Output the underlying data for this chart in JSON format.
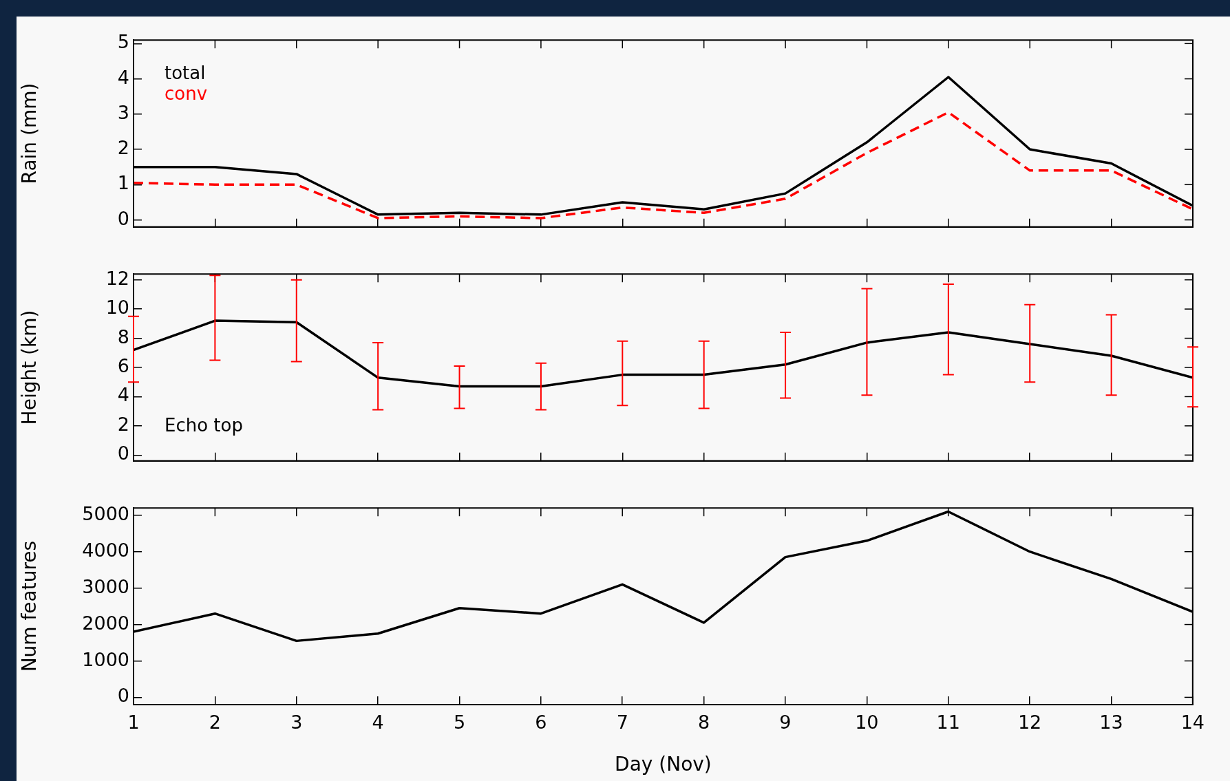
{
  "chart_data": [
    {
      "type": "line",
      "ylabel": "Rain (mm)",
      "x": [
        1,
        2,
        3,
        4,
        5,
        6,
        7,
        8,
        9,
        10,
        11,
        12,
        13,
        14
      ],
      "xlim": [
        1,
        14
      ],
      "xticks": [
        1,
        2,
        3,
        4,
        5,
        6,
        7,
        8,
        9,
        10,
        11,
        12,
        13,
        14
      ],
      "ylim": [
        -0.2,
        5.1
      ],
      "yticks": [
        0,
        1,
        2,
        3,
        4,
        5
      ],
      "tick_labels": "y",
      "grid": false,
      "legend": "top left",
      "marker": "none",
      "series": [
        {
          "name": "total",
          "color": "#000000",
          "line_style": "solid",
          "values": [
            1.5,
            1.5,
            1.3,
            0.15,
            0.2,
            0.15,
            0.5,
            0.3,
            0.75,
            2.2,
            4.05,
            2.0,
            1.6,
            0.4
          ]
        },
        {
          "name": "conv",
          "color": "#ff0000",
          "line_style": "dashed",
          "values": [
            1.05,
            1.0,
            1.0,
            0.05,
            0.1,
            0.05,
            0.35,
            0.2,
            0.6,
            1.9,
            3.05,
            1.4,
            1.4,
            0.3
          ]
        }
      ]
    },
    {
      "type": "line",
      "ylabel": "Height (km)",
      "annotations": [
        "Echo top"
      ],
      "x": [
        1,
        2,
        3,
        4,
        5,
        6,
        7,
        8,
        9,
        10,
        11,
        12,
        13,
        14
      ],
      "xlim": [
        1,
        14
      ],
      "xticks": [
        1,
        2,
        3,
        4,
        5,
        6,
        7,
        8,
        9,
        10,
        11,
        12,
        13,
        14
      ],
      "ylim": [
        -0.4,
        12.4
      ],
      "yticks": [
        0,
        2,
        4,
        6,
        8,
        10,
        12
      ],
      "tick_labels": "y",
      "grid": false,
      "marker": "none",
      "series": [
        {
          "color": "#000000",
          "line_style": "solid",
          "values": [
            7.2,
            9.2,
            9.1,
            5.3,
            4.7,
            4.7,
            5.5,
            5.5,
            6.2,
            7.7,
            8.4,
            7.6,
            6.8,
            5.3
          ],
          "errors": [
            [
              5.0,
              9.5
            ],
            [
              6.5,
              12.3
            ],
            [
              6.4,
              12.0
            ],
            [
              3.1,
              7.7
            ],
            [
              3.2,
              6.1
            ],
            [
              3.1,
              6.3
            ],
            [
              3.4,
              7.8
            ],
            [
              3.2,
              7.8
            ],
            [
              3.9,
              8.4
            ],
            [
              4.1,
              11.4
            ],
            [
              5.5,
              11.7
            ],
            [
              5.0,
              10.3
            ],
            [
              4.1,
              9.6
            ],
            [
              3.3,
              7.4
            ]
          ]
        }
      ]
    },
    {
      "type": "line",
      "ylabel": "Num features",
      "xlabel": "Day (Nov)",
      "x": [
        1,
        2,
        3,
        4,
        5,
        6,
        7,
        8,
        9,
        10,
        11,
        12,
        13,
        14
      ],
      "xlim": [
        1,
        14
      ],
      "xticks": [
        1,
        2,
        3,
        4,
        5,
        6,
        7,
        8,
        9,
        10,
        11,
        12,
        13,
        14
      ],
      "ylim": [
        -200,
        5200
      ],
      "yticks": [
        0,
        1000,
        2000,
        3000,
        4000,
        5000
      ],
      "grid": false,
      "marker": "none",
      "series": [
        {
          "color": "#000000",
          "line_style": "solid",
          "values": [
            1800,
            2300,
            1550,
            1750,
            2450,
            2300,
            3100,
            2050,
            3850,
            4300,
            5100,
            4000,
            3250,
            2350
          ]
        }
      ]
    }
  ]
}
